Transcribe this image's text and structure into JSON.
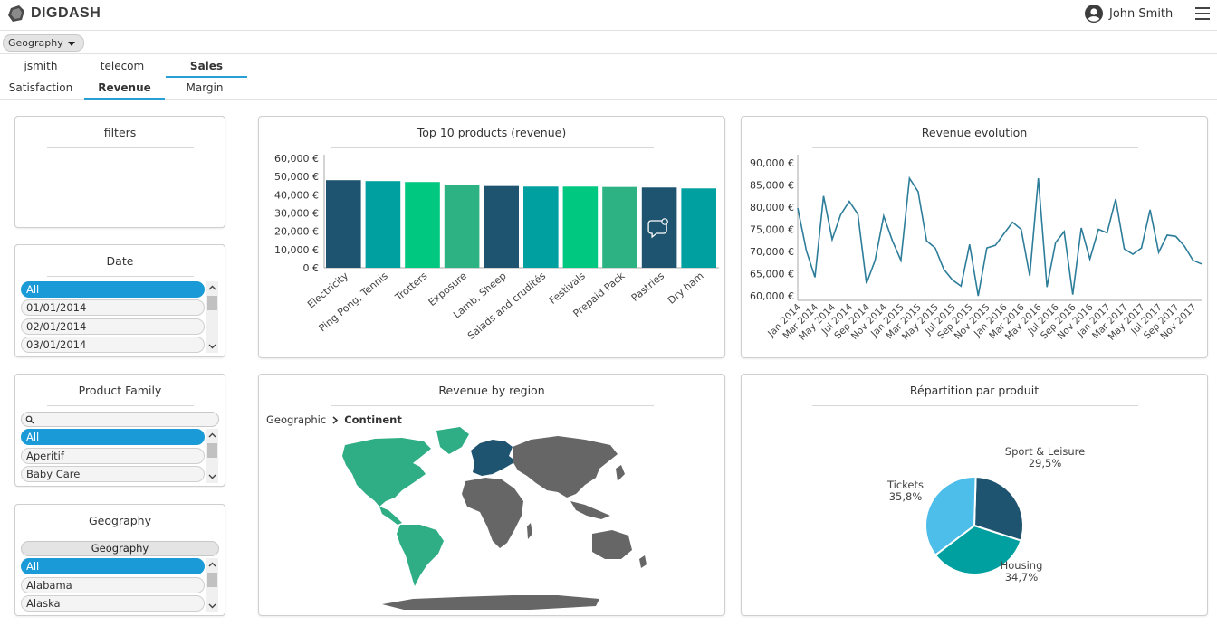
{
  "app": {
    "brand": "DIGDASH",
    "user_name": "John Smith"
  },
  "selector": {
    "value": "Geography"
  },
  "tabs_row1": [
    {
      "label": "jsmith"
    },
    {
      "label": "telecom"
    },
    {
      "label": "Sales"
    }
  ],
  "tabs_row2": [
    {
      "label": "Satisfaction"
    },
    {
      "label": "Revenue"
    },
    {
      "label": "Margin"
    }
  ],
  "filters_panel": {
    "title": "filters"
  },
  "date_panel": {
    "title": "Date",
    "items": [
      "All",
      "01/01/2014",
      "02/01/2014",
      "03/01/2014"
    ]
  },
  "product_family_panel": {
    "title": "Product Family",
    "items": [
      "All",
      "Aperitif",
      "Baby Care"
    ]
  },
  "geography_panel": {
    "title": "Geography",
    "header": "Geography",
    "items": [
      "All",
      "Alabama",
      "Alaska"
    ]
  },
  "region_panel": {
    "title": "Revenue by region",
    "breadcrumb_root": "Geographic",
    "breadcrumb_current": "Continent"
  },
  "colors": {
    "dark_blue": "#1f5470",
    "teal": "#00a0a0",
    "green": "#00c880",
    "mid_green": "#2db383",
    "line": "#2d7d9a",
    "light_blue": "#4dbde9",
    "map_gray": "#666666",
    "map_green": "#2fae85",
    "selected": "#1a9bd7"
  },
  "chart_data": [
    {
      "type": "bar",
      "title": "Top 10 products (revenue)",
      "categories": [
        "Electricity",
        "Ping Pong, Tennis",
        "Trotters",
        "Exposure",
        "Lamb, Sheep",
        "Salads and crudités",
        "Festivals",
        "Prepaid Pack",
        "Pastries",
        "Dry ham"
      ],
      "values": [
        48000,
        47500,
        47000,
        45500,
        44800,
        44500,
        44500,
        44300,
        44000,
        43500
      ],
      "bar_colors": [
        "#1f5470",
        "#00a0a0",
        "#00c880",
        "#2db383",
        "#1f5470",
        "#00a0a0",
        "#00c880",
        "#2db383",
        "#1f5470",
        "#00a0a0"
      ],
      "y_ticks": [
        "0 €",
        "10,000 €",
        "20,000 €",
        "30,000 €",
        "40,000 €",
        "50,000 €",
        "60,000 €"
      ],
      "ylim": [
        0,
        60000
      ]
    },
    {
      "type": "line",
      "title": "Revenue evolution",
      "x_tick_labels": [
        "Jan 2014",
        "Mar 2014",
        "May 2014",
        "Jul 2014",
        "Sep 2014",
        "Nov 2014",
        "Jan 2015",
        "Mar 2015",
        "May 2015",
        "Jul 2015",
        "Sep 2015",
        "Nov 2015",
        "Jan 2016",
        "Mar 2016",
        "May 2016",
        "Jul 2016",
        "Sep 2016",
        "Nov 2016",
        "Jan 2017",
        "Mar 2017",
        "May 2017",
        "Jul 2017",
        "Sep 2017",
        "Nov 2017"
      ],
      "values": [
        79800,
        70200,
        64200,
        82500,
        72700,
        78300,
        81300,
        78400,
        62800,
        68000,
        78000,
        72500,
        68000,
        86500,
        83500,
        72400,
        70800,
        66000,
        63600,
        62200,
        71600,
        60000,
        70800,
        71400,
        74000,
        76600,
        75000,
        64500,
        86500,
        62000,
        72000,
        74500,
        60300,
        75300,
        68300,
        75000,
        74200,
        81800,
        70600,
        69400,
        70800,
        79400,
        69800,
        73700,
        73400,
        71200,
        68000,
        67200
      ],
      "y_ticks": [
        "60,000 €",
        "65,000 €",
        "70,000 €",
        "75,000 €",
        "80,000 €",
        "85,000 €",
        "90,000 €"
      ],
      "ylim": [
        59000,
        91000
      ]
    },
    {
      "type": "pie",
      "title": "Répartition par produit",
      "slices": [
        {
          "label": "Sport & Leisure",
          "pct_label": "29,5%",
          "value": 29.5,
          "color": "#1f5470"
        },
        {
          "label": "Housing",
          "pct_label": "34,7%",
          "value": 34.7,
          "color": "#00a0a0"
        },
        {
          "label": "Tickets",
          "pct_label": "35,8%",
          "value": 35.8,
          "color": "#4dbde9"
        }
      ]
    }
  ]
}
